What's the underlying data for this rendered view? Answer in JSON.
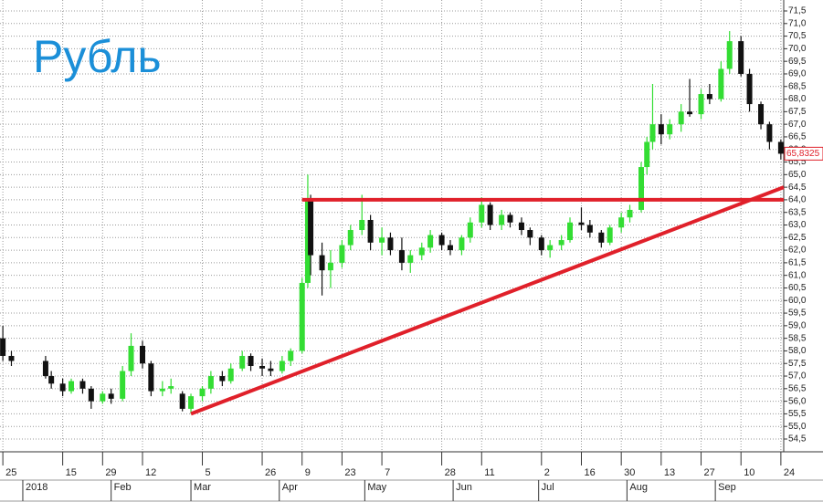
{
  "chart_data": {
    "type": "candlestick",
    "title": "Рубль",
    "title_color": "#1b8fd8",
    "up_color": "#33dd33",
    "down_color": "#111111",
    "grid": true,
    "x": [
      "2017-12-25",
      "2017-12-28",
      "2018-01-09",
      "2018-01-11",
      "2018-01-15",
      "2018-01-18",
      "2018-01-22",
      "2018-01-25",
      "2018-01-29",
      "2018-02-01",
      "2018-02-05",
      "2018-02-08",
      "2018-02-12",
      "2018-02-15",
      "2018-02-19",
      "2018-02-22",
      "2018-02-26",
      "2018-03-01",
      "2018-03-05",
      "2018-03-08",
      "2018-03-12",
      "2018-03-15",
      "2018-03-19",
      "2018-03-22",
      "2018-03-26",
      "2018-03-29",
      "2018-04-02",
      "2018-04-05",
      "2018-04-09",
      "2018-04-11",
      "2018-04-12",
      "2018-04-16",
      "2018-04-19",
      "2018-04-23",
      "2018-04-26",
      "2018-04-30",
      "2018-05-03",
      "2018-05-07",
      "2018-05-10",
      "2018-05-14",
      "2018-05-17",
      "2018-05-21",
      "2018-05-24",
      "2018-05-28",
      "2018-05-31",
      "2018-06-04",
      "2018-06-07",
      "2018-06-11",
      "2018-06-14",
      "2018-06-18",
      "2018-06-21",
      "2018-06-25",
      "2018-06-28",
      "2018-07-02",
      "2018-07-05",
      "2018-07-09",
      "2018-07-12",
      "2018-07-16",
      "2018-07-19",
      "2018-07-23",
      "2018-07-26",
      "2018-07-30",
      "2018-08-02",
      "2018-08-06",
      "2018-08-08",
      "2018-08-10",
      "2018-08-13",
      "2018-08-16",
      "2018-08-20",
      "2018-08-23",
      "2018-08-27",
      "2018-08-30",
      "2018-09-03",
      "2018-09-06",
      "2018-09-10",
      "2018-09-13",
      "2018-09-17",
      "2018-09-20",
      "2018-09-24"
    ],
    "open": [
      58.5,
      57.8,
      57.6,
      57.0,
      56.7,
      56.4,
      56.8,
      56.5,
      56.0,
      56.3,
      56.1,
      57.2,
      58.2,
      57.5,
      56.4,
      56.5,
      56.3,
      55.7,
      56.2,
      56.5,
      57.0,
      56.8,
      57.3,
      57.8,
      57.4,
      57.3,
      57.2,
      57.6,
      58.0,
      60.7,
      64.0,
      61.8,
      61.2,
      61.5,
      62.2,
      62.8,
      63.2,
      62.3,
      62.5,
      62.0,
      61.5,
      61.8,
      62.1,
      62.6,
      62.2,
      62.0,
      62.5,
      63.1,
      63.8,
      63.0,
      63.4,
      63.1,
      62.8,
      62.5,
      62.0,
      62.2,
      62.4,
      63.1,
      63.0,
      62.7,
      62.3,
      62.9,
      63.3,
      63.6,
      65.3,
      66.3,
      67.0,
      66.6,
      67.0,
      67.5,
      67.4,
      68.2,
      68.0,
      69.2,
      70.3,
      69.0,
      67.8,
      67.0,
      66.3
    ],
    "high": [
      59.0,
      58.0,
      57.8,
      57.2,
      56.9,
      56.9,
      56.9,
      56.6,
      56.4,
      56.5,
      57.4,
      58.7,
      58.4,
      57.6,
      56.8,
      56.9,
      56.4,
      56.3,
      56.6,
      57.2,
      57.2,
      57.5,
      58.0,
      57.9,
      57.7,
      57.6,
      57.8,
      58.1,
      60.9,
      65.0,
      64.2,
      62.3,
      62.0,
      62.4,
      63.0,
      64.2,
      63.4,
      62.9,
      62.7,
      62.5,
      62.0,
      62.3,
      62.8,
      62.7,
      62.4,
      62.6,
      63.3,
      64.1,
      63.9,
      63.6,
      63.5,
      63.3,
      62.9,
      62.6,
      62.4,
      62.6,
      63.3,
      63.7,
      63.2,
      62.8,
      63.0,
      63.5,
      63.8,
      65.5,
      66.5,
      68.6,
      67.4,
      67.2,
      67.8,
      68.8,
      68.4,
      68.6,
      69.5,
      70.7,
      70.5,
      69.2,
      67.9,
      67.1,
      66.4
    ],
    "low": [
      57.6,
      57.4,
      56.9,
      56.5,
      56.2,
      56.3,
      56.3,
      55.7,
      55.9,
      55.9,
      56.0,
      57.0,
      57.3,
      56.2,
      56.2,
      56.3,
      55.6,
      55.5,
      56.0,
      56.3,
      56.6,
      56.7,
      57.2,
      57.2,
      57.0,
      57.0,
      57.1,
      57.4,
      57.9,
      60.5,
      61.0,
      60.2,
      60.5,
      61.3,
      62.0,
      62.6,
      62.0,
      61.8,
      61.8,
      61.2,
      61.1,
      61.6,
      61.9,
      62.0,
      61.8,
      61.8,
      62.3,
      62.9,
      62.8,
      62.8,
      62.9,
      62.6,
      62.2,
      61.8,
      61.7,
      62.0,
      62.3,
      62.8,
      62.5,
      62.1,
      62.2,
      62.7,
      63.1,
      63.5,
      65.0,
      66.0,
      66.2,
      66.4,
      66.7,
      67.3,
      67.2,
      67.8,
      67.9,
      69.0,
      68.9,
      67.5,
      66.8,
      66.0,
      65.6
    ],
    "close": [
      57.8,
      57.6,
      57.0,
      56.7,
      56.4,
      56.8,
      56.5,
      56.0,
      56.3,
      56.1,
      57.2,
      58.2,
      57.5,
      56.4,
      56.5,
      56.6,
      55.7,
      56.2,
      56.5,
      57.0,
      56.8,
      57.3,
      57.8,
      57.4,
      57.3,
      57.2,
      57.6,
      58.0,
      60.7,
      64.0,
      61.8,
      61.2,
      61.5,
      62.2,
      62.8,
      63.2,
      62.3,
      62.5,
      62.0,
      61.5,
      61.8,
      62.1,
      62.6,
      62.2,
      62.0,
      62.5,
      63.1,
      63.8,
      63.0,
      63.4,
      63.1,
      62.8,
      62.5,
      62.0,
      62.2,
      62.4,
      63.1,
      63.0,
      62.7,
      62.3,
      62.9,
      63.3,
      63.6,
      65.3,
      66.3,
      67.0,
      66.6,
      67.0,
      67.5,
      67.4,
      68.2,
      68.0,
      69.2,
      70.3,
      69.0,
      67.8,
      67.0,
      66.3,
      65.83
    ],
    "lines": [
      {
        "color": "#e0202a",
        "x": [
          "2018-04-09",
          "2018-09-25"
        ],
        "y": [
          64.0,
          64.0
        ]
      },
      {
        "color": "#e0202a",
        "x": [
          "2018-03-01",
          "2018-09-25"
        ],
        "y": [
          55.5,
          64.5
        ]
      }
    ],
    "last_price": {
      "value": 65.8325,
      "label": "65,8325",
      "color": "#e0202a"
    },
    "xlim": [
      "2017-12-24",
      "2018-09-25"
    ],
    "xticks": [
      {
        "value": "2017-12-25",
        "label": "25"
      },
      {
        "value": "2018-01-15",
        "label": "15"
      },
      {
        "value": "2018-01-29",
        "label": "29"
      },
      {
        "value": "2018-02-12",
        "label": "12"
      },
      {
        "value": "2018-03-05",
        "label": "5"
      },
      {
        "value": "2018-03-26",
        "label": "26"
      },
      {
        "value": "2018-04-09",
        "label": "9"
      },
      {
        "value": "2018-04-23",
        "label": "23"
      },
      {
        "value": "2018-05-07",
        "label": "7"
      },
      {
        "value": "2018-05-28",
        "label": "28"
      },
      {
        "value": "2018-06-11",
        "label": "11"
      },
      {
        "value": "2018-07-02",
        "label": "2"
      },
      {
        "value": "2018-07-16",
        "label": "16"
      },
      {
        "value": "2018-07-30",
        "label": "30"
      },
      {
        "value": "2018-08-13",
        "label": "13"
      },
      {
        "value": "2018-08-27",
        "label": "27"
      },
      {
        "value": "2018-09-10",
        "label": "10"
      },
      {
        "value": "2018-09-24",
        "label": "24"
      }
    ],
    "months": [
      {
        "value": "2018-01-01",
        "label": "2018"
      },
      {
        "value": "2018-02-01",
        "label": "Feb"
      },
      {
        "value": "2018-03-01",
        "label": "Mar"
      },
      {
        "value": "2018-04-01",
        "label": "Apr"
      },
      {
        "value": "2018-05-01",
        "label": "May"
      },
      {
        "value": "2018-06-01",
        "label": "Jun"
      },
      {
        "value": "2018-07-01",
        "label": "Jul"
      },
      {
        "value": "2018-08-01",
        "label": "Aug"
      },
      {
        "value": "2018-09-01",
        "label": "Sep"
      }
    ],
    "ylim": [
      54.5,
      71.5
    ],
    "yticks": [
      {
        "value": 54.5,
        "label": "54,5"
      },
      {
        "value": 55.0,
        "label": "55,0"
      },
      {
        "value": 55.5,
        "label": "55,5"
      },
      {
        "value": 56.0,
        "label": "56,0"
      },
      {
        "value": 56.5,
        "label": "56,5"
      },
      {
        "value": 57.0,
        "label": "57,0"
      },
      {
        "value": 57.5,
        "label": "57,5"
      },
      {
        "value": 58.0,
        "label": "58,0"
      },
      {
        "value": 58.5,
        "label": "58,5"
      },
      {
        "value": 59.0,
        "label": "59,0"
      },
      {
        "value": 59.5,
        "label": "59,5"
      },
      {
        "value": 60.0,
        "label": "60,0"
      },
      {
        "value": 60.5,
        "label": "60,5"
      },
      {
        "value": 61.0,
        "label": "61,0"
      },
      {
        "value": 61.5,
        "label": "61,5"
      },
      {
        "value": 62.0,
        "label": "62,0"
      },
      {
        "value": 62.5,
        "label": "62,5"
      },
      {
        "value": 63.0,
        "label": "63,0"
      },
      {
        "value": 63.5,
        "label": "63,5"
      },
      {
        "value": 64.0,
        "label": "64,0"
      },
      {
        "value": 64.5,
        "label": "64,5"
      },
      {
        "value": 65.0,
        "label": "65,0"
      },
      {
        "value": 65.5,
        "label": "65,5"
      },
      {
        "value": 66.0,
        "label": "66,0"
      },
      {
        "value": 66.5,
        "label": "66,5"
      },
      {
        "value": 67.0,
        "label": "67,0"
      },
      {
        "value": 67.5,
        "label": "67,5"
      },
      {
        "value": 68.0,
        "label": "68,0"
      },
      {
        "value": 68.5,
        "label": "68,5"
      },
      {
        "value": 69.0,
        "label": "69,0"
      },
      {
        "value": 69.5,
        "label": "69,5"
      },
      {
        "value": 70.0,
        "label": "70,0"
      },
      {
        "value": 70.5,
        "label": "70,5"
      },
      {
        "value": 71.0,
        "label": "71,0"
      },
      {
        "value": 71.5,
        "label": "71,5"
      }
    ]
  }
}
